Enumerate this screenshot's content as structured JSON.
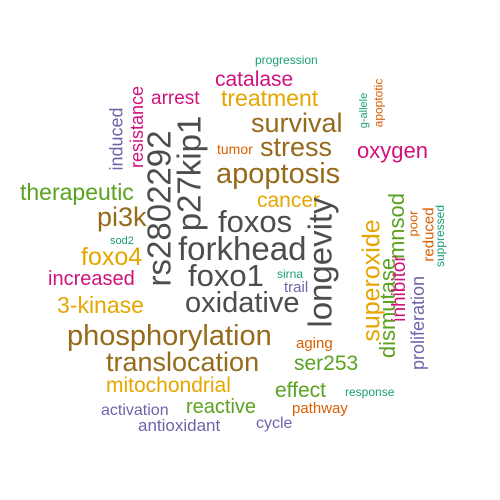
{
  "colors": {
    "gray": "#4d4d4d",
    "brown": "#966a1b",
    "gold": "#e5a600",
    "green": "#5aa220",
    "teal": "#1b9e77",
    "magenta": "#d0127c",
    "purple": "#6f64aa",
    "orange": "#d95f02"
  },
  "words": [
    {
      "text": "progression",
      "color": "teal"
    },
    {
      "text": "catalase",
      "color": "magenta"
    },
    {
      "text": "arrest",
      "color": "magenta"
    },
    {
      "text": "treatment",
      "color": "gold"
    },
    {
      "text": "survival",
      "color": "brown"
    },
    {
      "text": "stress",
      "color": "brown"
    },
    {
      "text": "tumor",
      "color": "orange"
    },
    {
      "text": "oxygen",
      "color": "magenta"
    },
    {
      "text": "apoptosis",
      "color": "brown"
    },
    {
      "text": "therapeutic",
      "color": "green"
    },
    {
      "text": "cancer",
      "color": "gold"
    },
    {
      "text": "pi3k",
      "color": "brown"
    },
    {
      "text": "foxos",
      "color": "gray"
    },
    {
      "text": "forkhead",
      "color": "gray"
    },
    {
      "text": "foxo4",
      "color": "gold"
    },
    {
      "text": "foxo1",
      "color": "gray"
    },
    {
      "text": "increased",
      "color": "magenta"
    },
    {
      "text": "sirna",
      "color": "teal"
    },
    {
      "text": "trail",
      "color": "purple"
    },
    {
      "text": "3-kinase",
      "color": "gold"
    },
    {
      "text": "oxidative",
      "color": "gray"
    },
    {
      "text": "phosphorylation",
      "color": "brown"
    },
    {
      "text": "aging",
      "color": "orange"
    },
    {
      "text": "translocation",
      "color": "brown"
    },
    {
      "text": "ser253",
      "color": "green"
    },
    {
      "text": "mitochondrial",
      "color": "gold"
    },
    {
      "text": "effect",
      "color": "green"
    },
    {
      "text": "response",
      "color": "teal"
    },
    {
      "text": "reactive",
      "color": "green"
    },
    {
      "text": "pathway",
      "color": "orange"
    },
    {
      "text": "activation",
      "color": "purple"
    },
    {
      "text": "antioxidant",
      "color": "purple"
    },
    {
      "text": "cycle",
      "color": "purple"
    },
    {
      "text": "sod2",
      "color": "teal"
    },
    {
      "text": "induced",
      "color": "purple"
    },
    {
      "text": "resistance",
      "color": "magenta"
    },
    {
      "text": "rs2802292",
      "color": "gray"
    },
    {
      "text": "p27kip1",
      "color": "gray"
    },
    {
      "text": "longevity",
      "color": "gray"
    },
    {
      "text": "superoxide",
      "color": "gold"
    },
    {
      "text": "dismutase",
      "color": "green"
    },
    {
      "text": "mnsod",
      "color": "green"
    },
    {
      "text": "inhibitor",
      "color": "magenta"
    },
    {
      "text": "proliferation",
      "color": "purple"
    },
    {
      "text": "poor",
      "color": "orange"
    },
    {
      "text": "reduced",
      "color": "orange"
    },
    {
      "text": "suppressed",
      "color": "teal"
    },
    {
      "text": "g-allele",
      "color": "teal"
    },
    {
      "text": "apoptotic",
      "color": "orange"
    }
  ]
}
